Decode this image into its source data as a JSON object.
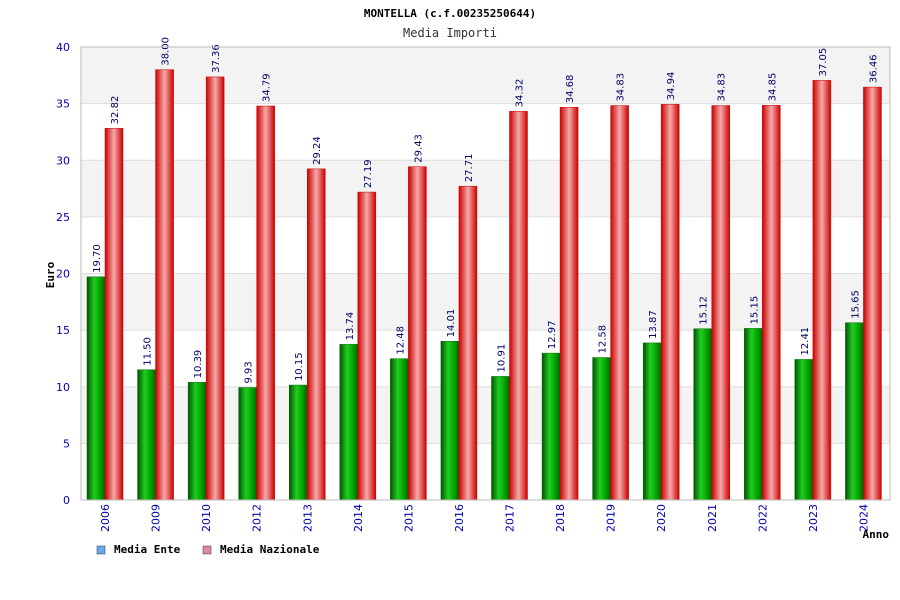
{
  "chart_data": {
    "type": "bar",
    "title": "MONTELLA (c.f.00235250644)",
    "subtitle": "Media Importi",
    "xlabel": "Anno",
    "ylabel": "Euro",
    "ylim": [
      0,
      40
    ],
    "yticks": [
      0,
      5,
      10,
      15,
      20,
      25,
      30,
      35,
      40
    ],
    "grid": true,
    "legend_position": "bottom-left",
    "categories": [
      "2006",
      "2009",
      "2010",
      "2012",
      "2013",
      "2014",
      "2015",
      "2016",
      "2017",
      "2018",
      "2019",
      "2020",
      "2021",
      "2022",
      "2023",
      "2024"
    ],
    "series": [
      {
        "name": "Media Ente",
        "color": "#00aa00",
        "legend_color": "#66aaee",
        "values": [
          19.7,
          11.5,
          10.39,
          9.93,
          10.15,
          13.74,
          12.48,
          14.01,
          10.91,
          12.97,
          12.58,
          13.87,
          15.12,
          15.15,
          12.41,
          15.65
        ],
        "labels": [
          "19.70",
          "11.50",
          "10.39",
          "9.93",
          "10.15",
          "13.74",
          "12.48",
          "14.01",
          "10.91",
          "12.97",
          "12.58",
          "13.87",
          "15.12",
          "15.15",
          "12.41",
          "15.65"
        ]
      },
      {
        "name": "Media Nazionale",
        "color": "#ee1111",
        "legend_color": "#dd88aa",
        "values": [
          32.82,
          38.0,
          37.36,
          34.79,
          29.24,
          27.19,
          29.43,
          27.71,
          34.32,
          34.68,
          34.83,
          34.94,
          34.83,
          34.85,
          37.05,
          36.46
        ],
        "labels": [
          "32.82",
          "38.00",
          "37.36",
          "34.79",
          "29.24",
          "27.19",
          "29.43",
          "27.71",
          "34.32",
          "34.68",
          "34.83",
          "34.94",
          "34.83",
          "34.85",
          "37.05",
          "36.46"
        ]
      }
    ]
  }
}
